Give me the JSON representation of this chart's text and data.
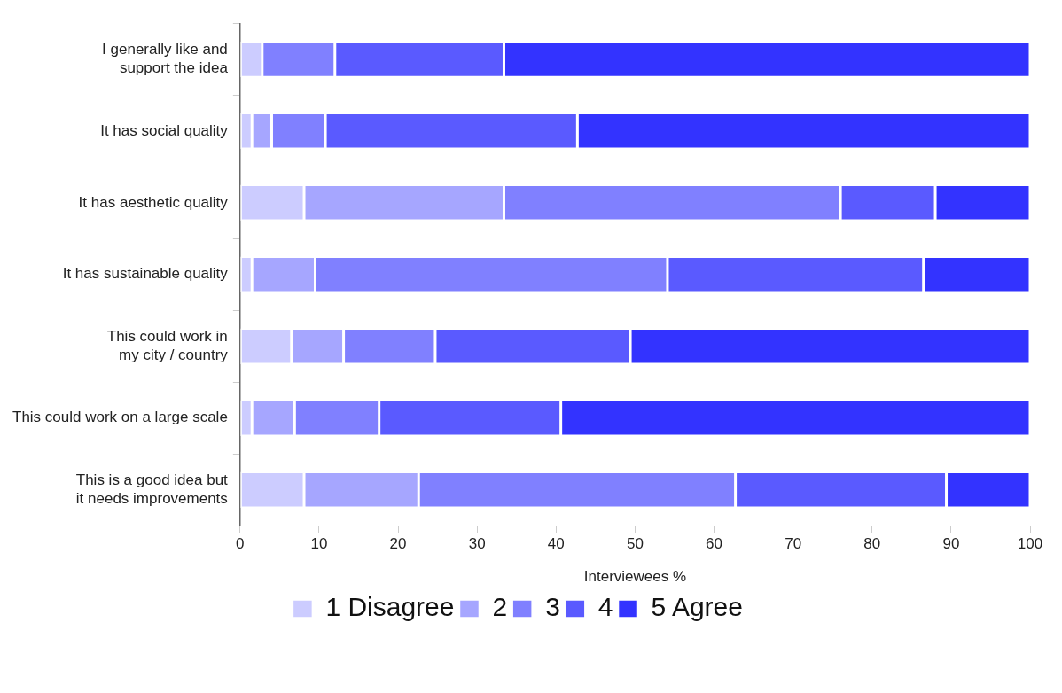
{
  "chart_data": {
    "type": "bar",
    "orientation": "horizontal",
    "stacked": true,
    "xlabel": "Interviewees %",
    "categories": [
      "I generally like and\nsupport the idea",
      "It has social quality",
      "It has aesthetic quality",
      "It has sustainable quality",
      "This could work in\nmy city / country",
      "This could work on a large scale",
      "This is a good idea but\nit needs improvements"
    ],
    "series": [
      {
        "name": "1 Disagree",
        "color": "#ccccff",
        "values": [
          2.8,
          1.5,
          8.1,
          1.5,
          6.5,
          1.5,
          8.1
        ]
      },
      {
        "name": "2",
        "color": "#a6a6ff",
        "values": [
          0,
          2.5,
          25.3,
          8.0,
          6.6,
          5.4,
          14.5
        ]
      },
      {
        "name": "3",
        "color": "#8080ff",
        "values": [
          9.2,
          6.8,
          42.6,
          44.6,
          11.6,
          10.7,
          40.1
        ]
      },
      {
        "name": "4",
        "color": "#5a5aff",
        "values": [
          21.4,
          31.9,
          12.0,
          32.4,
          24.7,
          23.0,
          26.7
        ]
      },
      {
        "name": "5 Agree",
        "color": "#3333ff",
        "values": [
          66.6,
          57.3,
          12.0,
          13.5,
          50.6,
          59.4,
          10.6
        ]
      }
    ],
    "xlim": [
      0,
      100
    ],
    "xticks": [
      0,
      10,
      20,
      30,
      40,
      50,
      60,
      70,
      80,
      90,
      100
    ],
    "grid": false,
    "legend": "bottom"
  }
}
